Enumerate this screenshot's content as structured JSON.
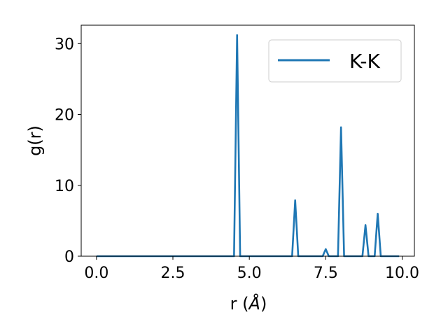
{
  "chart_data": {
    "type": "line",
    "title": "",
    "xlabel_main": "r (",
    "xlabel_unit": "Å",
    "xlabel_close": ")",
    "ylabel": "g(r)",
    "xlim": [
      -0.5,
      10.4
    ],
    "ylim": [
      0,
      32.6
    ],
    "xticks": [
      0.0,
      2.5,
      5.0,
      7.5,
      10.0
    ],
    "xtick_labels": [
      "0.0",
      "2.5",
      "5.0",
      "7.5",
      "10.0"
    ],
    "yticks": [
      0,
      10,
      20,
      30
    ],
    "ytick_labels": [
      "0",
      "10",
      "20",
      "30"
    ],
    "grid": false,
    "legend_position": "top-right",
    "series": [
      {
        "name": "K-K",
        "color": "#1f77b4",
        "x": [
          0.0,
          4.5,
          4.6,
          4.7,
          6.4,
          6.5,
          6.6,
          7.4,
          7.5,
          7.6,
          7.9,
          8.0,
          8.1,
          8.7,
          8.8,
          8.9,
          9.1,
          9.2,
          9.3,
          9.9
        ],
        "y": [
          0,
          0,
          31.2,
          0,
          0,
          7.9,
          0,
          0,
          1.0,
          0,
          0,
          18.2,
          0,
          0,
          4.4,
          0,
          0,
          6.0,
          0,
          0
        ]
      }
    ]
  }
}
